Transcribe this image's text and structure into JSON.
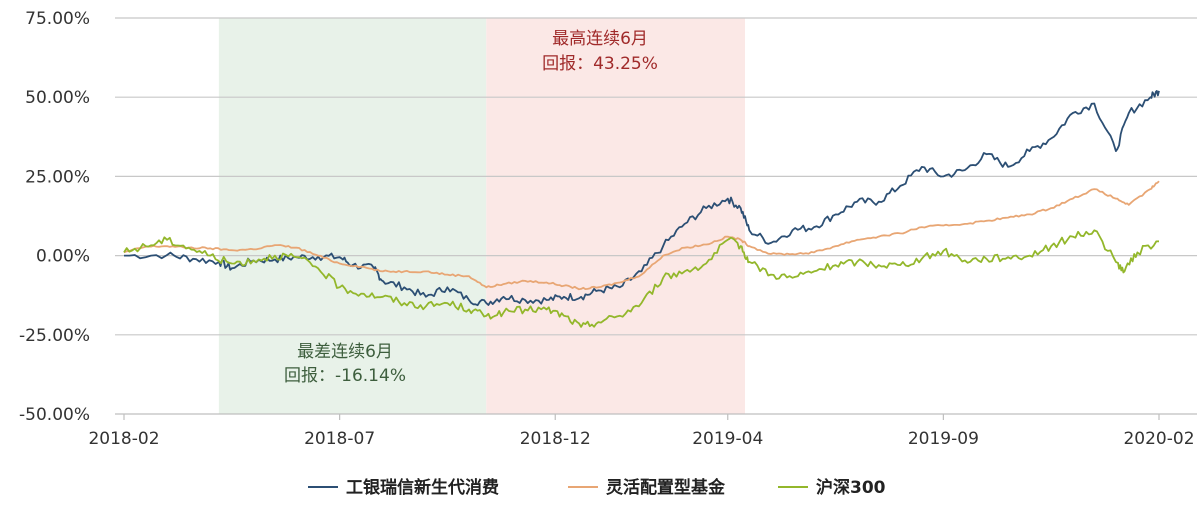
{
  "chart_data": {
    "type": "line",
    "y_ticks": [
      "75.00%",
      "50.00%",
      "25.00%",
      "0.00%",
      "-25.00%",
      "-50.00%"
    ],
    "y_values": [
      75,
      50,
      25,
      0,
      -25,
      -50
    ],
    "ylim": [
      -50,
      75
    ],
    "x_ticks": [
      "2018-02",
      "2018-07",
      "2018-12",
      "2019-04",
      "2019-09",
      "2020-02"
    ],
    "x_tick_months": [
      0,
      5,
      10,
      14,
      19,
      24
    ],
    "xlim_months": [
      0,
      24.1
    ],
    "grid": "horizontal",
    "legend_position": "bottom",
    "bands": [
      {
        "start_month": 2.2,
        "end_month": 8.4,
        "color": "#e8f2e9",
        "label_line1": "最差连续6月",
        "label_line2": "回报：-16.14%",
        "label_color": "#3d5e3d"
      },
      {
        "start_month": 8.4,
        "end_month": 14.4,
        "color": "#fbe8e6",
        "label_line1": "最高连续6月",
        "label_line2": "回报：43.25%",
        "label_color": "#a02a2a"
      }
    ],
    "series": [
      {
        "name": "工银瑞信新生代消费",
        "color": "#2c4f74",
        "points": [
          [
            0,
            0
          ],
          [
            1,
            0.2
          ],
          [
            1.6,
            -1
          ],
          [
            2.2,
            -2
          ],
          [
            2.5,
            -4
          ],
          [
            3,
            -1.5
          ],
          [
            3.5,
            -1.2
          ],
          [
            4,
            -0.5
          ],
          [
            4.5,
            -0.3
          ],
          [
            5,
            -0.5
          ],
          [
            5.3,
            -3
          ],
          [
            5.8,
            -4
          ],
          [
            6,
            -8
          ],
          [
            6.5,
            -10
          ],
          [
            7,
            -13
          ],
          [
            7.5,
            -10
          ],
          [
            8,
            -14
          ],
          [
            8.4,
            -15
          ],
          [
            8.8,
            -13
          ],
          [
            9.3,
            -14
          ],
          [
            9.8,
            -14
          ],
          [
            10.2,
            -13
          ],
          [
            10.6,
            -13
          ],
          [
            11,
            -11
          ],
          [
            11.5,
            -10
          ],
          [
            12,
            -5
          ],
          [
            12.5,
            3
          ],
          [
            13,
            10
          ],
          [
            13.5,
            15
          ],
          [
            14,
            18
          ],
          [
            14.3,
            15
          ],
          [
            14.5,
            8
          ],
          [
            15,
            4
          ],
          [
            15.5,
            8
          ],
          [
            16,
            9
          ],
          [
            16.5,
            13
          ],
          [
            17,
            17
          ],
          [
            17.5,
            17
          ],
          [
            18,
            22
          ],
          [
            18.5,
            28
          ],
          [
            19,
            25
          ],
          [
            19.5,
            27
          ],
          [
            20,
            32
          ],
          [
            20.5,
            28
          ],
          [
            21,
            33
          ],
          [
            21.5,
            37
          ],
          [
            22,
            45
          ],
          [
            22.5,
            48
          ],
          [
            23,
            33
          ],
          [
            23.3,
            45
          ],
          [
            23.8,
            50
          ],
          [
            24,
            52
          ]
        ]
      },
      {
        "name": "灵活配置型基金",
        "color": "#e8a674",
        "points": [
          [
            0,
            1
          ],
          [
            0.5,
            2.8
          ],
          [
            1,
            3
          ],
          [
            1.5,
            2.5
          ],
          [
            2,
            2.3
          ],
          [
            2.5,
            1.7
          ],
          [
            3,
            2
          ],
          [
            3.5,
            3.3
          ],
          [
            4,
            2.5
          ],
          [
            4.5,
            0
          ],
          [
            5,
            -2.5
          ],
          [
            5.5,
            -3.5
          ],
          [
            6,
            -5
          ],
          [
            6.5,
            -5
          ],
          [
            7,
            -5
          ],
          [
            7.5,
            -6
          ],
          [
            8,
            -6.5
          ],
          [
            8.4,
            -10
          ],
          [
            8.8,
            -9
          ],
          [
            9.3,
            -8
          ],
          [
            9.8,
            -8.5
          ],
          [
            10.2,
            -9.5
          ],
          [
            10.6,
            -10.5
          ],
          [
            11,
            -10
          ],
          [
            11.5,
            -8.5
          ],
          [
            12,
            -6
          ],
          [
            12.5,
            0
          ],
          [
            13,
            2.5
          ],
          [
            13.5,
            3.5
          ],
          [
            14,
            6
          ],
          [
            14.3,
            5
          ],
          [
            14.5,
            3
          ],
          [
            15,
            0.5
          ],
          [
            15.5,
            0.5
          ],
          [
            16,
            1
          ],
          [
            16.5,
            3
          ],
          [
            17,
            5
          ],
          [
            17.5,
            6
          ],
          [
            18,
            7
          ],
          [
            18.5,
            9
          ],
          [
            19,
            9.5
          ],
          [
            19.5,
            10
          ],
          [
            20,
            11
          ],
          [
            20.5,
            12
          ],
          [
            21,
            13
          ],
          [
            21.5,
            15
          ],
          [
            22,
            18
          ],
          [
            22.5,
            21
          ],
          [
            23,
            18
          ],
          [
            23.3,
            16
          ],
          [
            23.8,
            21
          ],
          [
            24,
            23.5
          ]
        ]
      },
      {
        "name": "沪深300",
        "color": "#93b72b",
        "points": [
          [
            0,
            1
          ],
          [
            0.5,
            3
          ],
          [
            1,
            5
          ],
          [
            1.5,
            2.5
          ],
          [
            2,
            0
          ],
          [
            2.5,
            -2.5
          ],
          [
            3,
            -1.5
          ],
          [
            3.5,
            0
          ],
          [
            4,
            -0.5
          ],
          [
            4.5,
            -4
          ],
          [
            5,
            -10
          ],
          [
            5.5,
            -12
          ],
          [
            6,
            -13
          ],
          [
            6.5,
            -15
          ],
          [
            7,
            -16
          ],
          [
            7.5,
            -15
          ],
          [
            8,
            -17
          ],
          [
            8.4,
            -19
          ],
          [
            8.8,
            -18
          ],
          [
            9.3,
            -17
          ],
          [
            9.8,
            -17
          ],
          [
            10.2,
            -19
          ],
          [
            10.6,
            -22.5
          ],
          [
            11,
            -21
          ],
          [
            11.5,
            -19
          ],
          [
            12,
            -15
          ],
          [
            12.5,
            -7
          ],
          [
            13,
            -5
          ],
          [
            13.5,
            -2.5
          ],
          [
            14,
            5
          ],
          [
            14.3,
            3
          ],
          [
            14.5,
            -2
          ],
          [
            15,
            -6
          ],
          [
            15.5,
            -7
          ],
          [
            16,
            -5
          ],
          [
            16.5,
            -3
          ],
          [
            17,
            -2
          ],
          [
            17.5,
            -3
          ],
          [
            18,
            -3
          ],
          [
            18.5,
            -1
          ],
          [
            19,
            1.5
          ],
          [
            19.5,
            -1.5
          ],
          [
            20,
            -1
          ],
          [
            20.5,
            -0.5
          ],
          [
            21,
            0
          ],
          [
            21.5,
            3
          ],
          [
            22,
            6
          ],
          [
            22.5,
            8
          ],
          [
            23,
            -2
          ],
          [
            23.2,
            -5
          ],
          [
            23.5,
            1
          ],
          [
            24,
            4.5
          ]
        ]
      }
    ]
  }
}
